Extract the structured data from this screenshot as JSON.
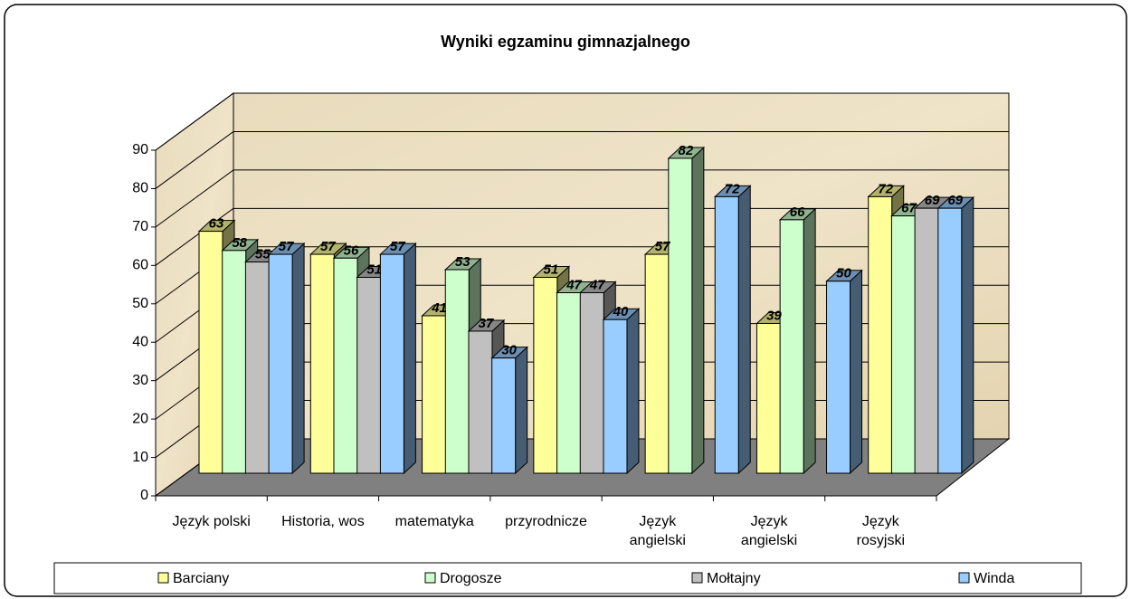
{
  "chart_data": {
    "type": "bar3d",
    "title": "Wyniki egzaminu gimnazjalnego",
    "categories": [
      "Język polski",
      "Historia, wos",
      "matematyka",
      "przyrodnicze",
      "Język\nangielski",
      "Język\nangielski",
      "Język\nrosyjski"
    ],
    "series": [
      {
        "name": "Barciany",
        "color": "#ffff99",
        "values": [
          63,
          57,
          41,
          51,
          57,
          39,
          72
        ]
      },
      {
        "name": "Drogosze",
        "color": "#ccffcc",
        "values": [
          58,
          56,
          53,
          47,
          82,
          66,
          67
        ]
      },
      {
        "name": "Mołtajny",
        "color": "#c0c0c0",
        "values": [
          55,
          51,
          37,
          47,
          null,
          null,
          69
        ]
      },
      {
        "name": "Winda",
        "color": "#99ccff",
        "values": [
          57,
          57,
          30,
          40,
          72,
          50,
          69
        ]
      }
    ],
    "ylim": [
      0,
      90
    ],
    "yticks": [
      0,
      10,
      20,
      30,
      40,
      50,
      60,
      70,
      80,
      90
    ],
    "grid": true,
    "legend": "bottom"
  }
}
